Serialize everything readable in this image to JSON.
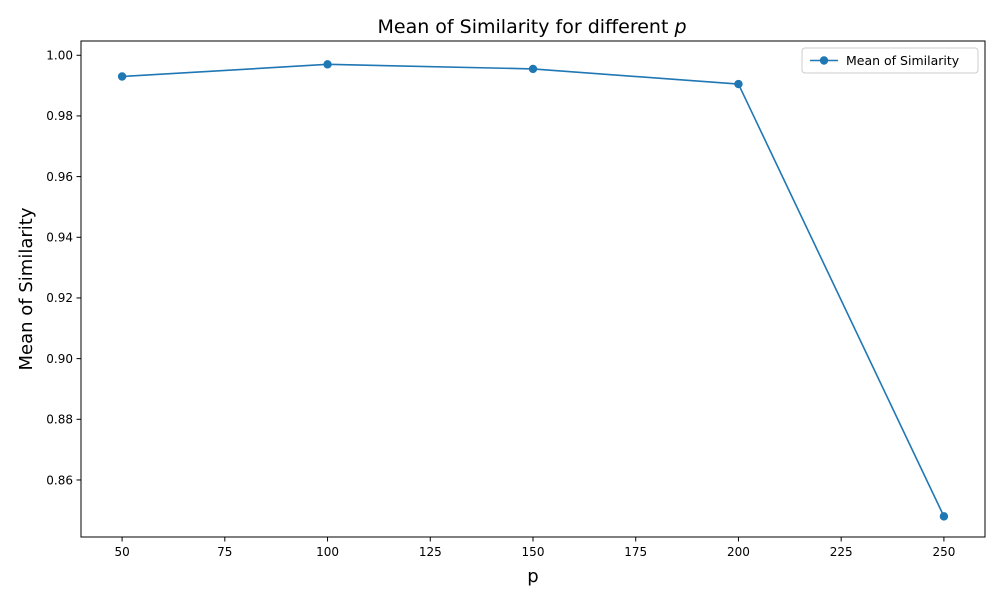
{
  "chart_data": {
    "type": "line",
    "title": "Mean of Similarity for different ",
    "title_variable": "p",
    "xlabel": "p",
    "ylabel": "Mean of Similarity",
    "x": [
      50,
      100,
      150,
      200,
      250
    ],
    "series": [
      {
        "name": "Mean of Similarity",
        "values": [
          0.993,
          0.997,
          0.9955,
          0.9905,
          0.848
        ],
        "color": "#1f77b4",
        "marker": "circle"
      }
    ],
    "xlim": [
      40,
      260
    ],
    "ylim": [
      0.8412,
      1.0047
    ],
    "xticks": [
      50,
      75,
      100,
      125,
      150,
      175,
      200,
      225,
      250
    ],
    "xtick_labels": [
      "50",
      "75",
      "100",
      "125",
      "150",
      "175",
      "200",
      "225",
      "250"
    ],
    "yticks": [
      0.86,
      0.88,
      0.9,
      0.92,
      0.94,
      0.96,
      0.98,
      1.0
    ],
    "ytick_labels": [
      "0.86",
      "0.88",
      "0.90",
      "0.92",
      "0.94",
      "0.96",
      "0.98",
      "1.00"
    ],
    "grid": false,
    "legend_position": "top-right"
  }
}
